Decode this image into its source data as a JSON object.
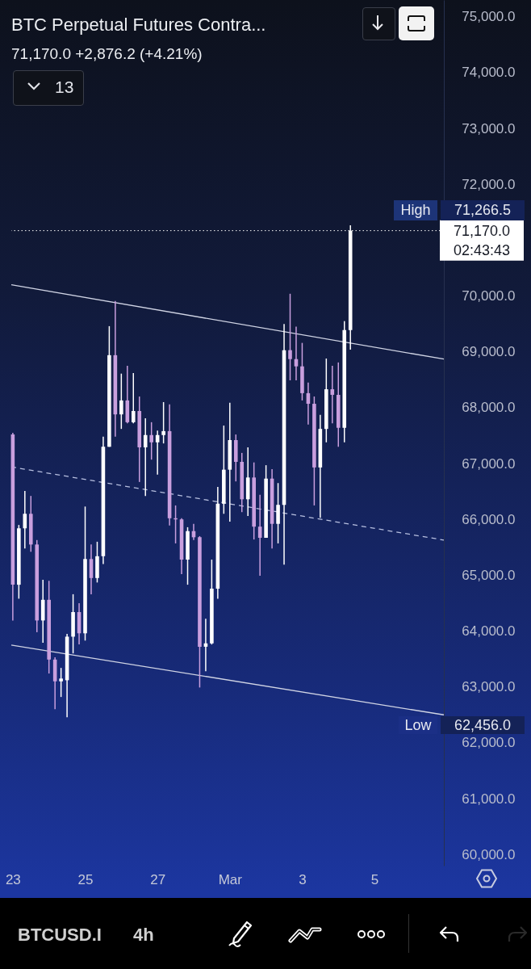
{
  "chart_data": {
    "type": "candlestick",
    "title": "BTC Perpetual Futures Contra...",
    "subtitle": "71,170.0 +2,876.2 (+4.21%)",
    "x": [
      "--02-23T00:00",
      "--02-23T04:00",
      "--02-23T08:00",
      "--02-23T12:00",
      "--02-23T16:00",
      "--02-23T20:00",
      "--02-24T00:00",
      "--02-24T04:00",
      "--02-24T08:00",
      "--02-24T12:00",
      "--02-24T16:00",
      "--02-24T20:00",
      "--02-25T00:00",
      "--02-25T04:00",
      "--02-25T08:00",
      "--02-25T12:00",
      "--02-25T16:00",
      "--02-25T20:00",
      "--02-26T00:00",
      "--02-26T04:00",
      "--02-26T08:00",
      "--02-26T12:00",
      "--02-26T16:00",
      "--02-26T20:00",
      "--02-27T00:00",
      "--02-27T04:00",
      "--02-27T08:00",
      "--02-27T12:00",
      "--02-27T16:00",
      "--02-27T20:00",
      "--02-28T00:00",
      "--02-28T04:00",
      "--02-28T08:00",
      "--02-28T12:00",
      "--02-28T16:00",
      "--02-28T20:00",
      "--03-01T00:00",
      "--03-01T04:00",
      "--03-01T08:00",
      "--03-01T12:00",
      "--03-01T16:00",
      "--03-01T20:00",
      "--03-02T00:00",
      "--03-02T04:00",
      "--03-02T08:00",
      "--03-02T12:00",
      "--03-02T16:00",
      "--03-02T20:00",
      "--03-03T00:00",
      "--03-03T04:00",
      "--03-03T08:00",
      "--03-03T12:00",
      "--03-03T16:00",
      "--03-03T20:00",
      "--03-04T00:00",
      "--03-04T04:00",
      "--03-04T08:00"
    ],
    "ohlc": [
      [
        67520,
        67550,
        64190,
        64830
      ],
      [
        64830,
        65900,
        64580,
        65840
      ],
      [
        65840,
        66510,
        65480,
        66100
      ],
      [
        66100,
        66420,
        65420,
        65550
      ],
      [
        65550,
        65630,
        63980,
        64190
      ],
      [
        64190,
        64920,
        63790,
        64560
      ],
      [
        64560,
        64900,
        63240,
        63490
      ],
      [
        63490,
        63530,
        62600,
        63100
      ],
      [
        63100,
        63340,
        62820,
        63150
      ],
      [
        63120,
        63950,
        62456,
        63900
      ],
      [
        63900,
        64660,
        63600,
        64340
      ],
      [
        64340,
        64500,
        63760,
        63960
      ],
      [
        63960,
        66230,
        63830,
        65290
      ],
      [
        65290,
        65550,
        64660,
        64950
      ],
      [
        64950,
        65600,
        64870,
        65340
      ],
      [
        65340,
        67480,
        65200,
        67300
      ],
      [
        67300,
        69460,
        67300,
        68940
      ],
      [
        68940,
        69910,
        67480,
        67880
      ],
      [
        67880,
        68610,
        67620,
        68130
      ],
      [
        68130,
        68750,
        67720,
        67740
      ],
      [
        67740,
        68620,
        67720,
        67940
      ],
      [
        67940,
        68200,
        66670,
        67290
      ],
      [
        67290,
        67810,
        66420,
        67510
      ],
      [
        67510,
        67740,
        67070,
        67380
      ],
      [
        67380,
        67590,
        66800,
        67510
      ],
      [
        67510,
        68100,
        67360,
        67580
      ],
      [
        67580,
        68060,
        65890,
        66020
      ],
      [
        66020,
        66250,
        65570,
        66000
      ],
      [
        66000,
        66020,
        65020,
        65280
      ],
      [
        65280,
        65860,
        64830,
        65790
      ],
      [
        65790,
        65920,
        65630,
        65680
      ],
      [
        65680,
        65700,
        62990,
        63720
      ],
      [
        63720,
        64220,
        63280,
        63780
      ],
      [
        63780,
        65280,
        63760,
        64760
      ],
      [
        64760,
        66580,
        64580,
        66280
      ],
      [
        66280,
        67680,
        66100,
        66890
      ],
      [
        66890,
        68090,
        65960,
        67420
      ],
      [
        67420,
        67520,
        66680,
        67030
      ],
      [
        67030,
        67190,
        66130,
        66360
      ],
      [
        66360,
        67290,
        66060,
        66750
      ],
      [
        66750,
        67020,
        65640,
        65870
      ],
      [
        65870,
        66440,
        64990,
        65670
      ],
      [
        65670,
        66970,
        65670,
        66730
      ],
      [
        66730,
        66900,
        65480,
        65920
      ],
      [
        65920,
        66650,
        65570,
        66260
      ],
      [
        66260,
        69500,
        65190,
        69030
      ],
      [
        69030,
        70040,
        68490,
        68870
      ],
      [
        68870,
        69450,
        68490,
        68740
      ],
      [
        68740,
        69160,
        68130,
        68260
      ],
      [
        68260,
        68450,
        67700,
        68070
      ],
      [
        68070,
        68200,
        66250,
        66930
      ],
      [
        66930,
        67870,
        66030,
        67620
      ],
      [
        67620,
        68880,
        67380,
        68330
      ],
      [
        68330,
        68750,
        67720,
        68230
      ],
      [
        68230,
        68810,
        67300,
        67640
      ],
      [
        67640,
        69550,
        67380,
        69390
      ],
      [
        69390,
        71266.5,
        69040,
        71170
      ]
    ],
    "series": [
      {
        "type": "line",
        "color": "#d0d4e4",
        "line_style": "solid",
        "x": [
          "--02-22T23:00",
          "--03-06T22:00"
        ],
        "values": [
          70200,
          68870
        ]
      },
      {
        "type": "line",
        "color": "#b8c0e0",
        "line_style": "dashed",
        "x": [
          "--02-22T23:00",
          "--03-06T22:00"
        ],
        "values": [
          66940,
          65630
        ]
      },
      {
        "type": "line",
        "color": "#d0d4e4",
        "line_style": "solid",
        "x": [
          "--02-22T23:00",
          "--03-06T22:00"
        ],
        "values": [
          63750,
          62500
        ]
      }
    ],
    "ref_lines": [
      {
        "axis": "y",
        "value": 71170,
        "label": "71,170.0",
        "color": "#ffffff",
        "line_style": "dotted"
      }
    ],
    "annotations": [
      "High",
      "71,266.5",
      "Low",
      "62,456.0",
      "02:43:43",
      "13",
      "BTCUSD.I",
      "4h"
    ],
    "xlim": [
      "--02-22T23:00",
      "--03-06T22:00"
    ],
    "xticks": [
      {
        "value": "--02-23",
        "label": "23"
      },
      {
        "value": "--02-25",
        "label": "25"
      },
      {
        "value": "--02-27",
        "label": "27"
      },
      {
        "value": "--03-01",
        "label": "Mar"
      },
      {
        "value": "--03-03",
        "label": "3"
      },
      {
        "value": "--03-05",
        "label": "5"
      }
    ],
    "ylim": [
      59800,
      75300
    ],
    "yticks": [
      {
        "value": 60000,
        "label": "60,000.0"
      },
      {
        "value": 61000,
        "label": "61,000.0"
      },
      {
        "value": 62000,
        "label": "62,000.0"
      },
      {
        "value": 63000,
        "label": "63,000.0"
      },
      {
        "value": 64000,
        "label": "64,000.0"
      },
      {
        "value": 65000,
        "label": "65,000.0"
      },
      {
        "value": 66000,
        "label": "66,000.0"
      },
      {
        "value": 67000,
        "label": "67,000.0"
      },
      {
        "value": 68000,
        "label": "68,000.0"
      },
      {
        "value": 69000,
        "label": "69,000.0"
      },
      {
        "value": 70000,
        "label": "70,000.0"
      },
      {
        "value": 72000,
        "label": "72,000.0"
      },
      {
        "value": 73000,
        "label": "73,000.0"
      },
      {
        "value": 74000,
        "label": "74,000.0"
      },
      {
        "value": 75000,
        "label": "75,000.0"
      }
    ]
  }
}
